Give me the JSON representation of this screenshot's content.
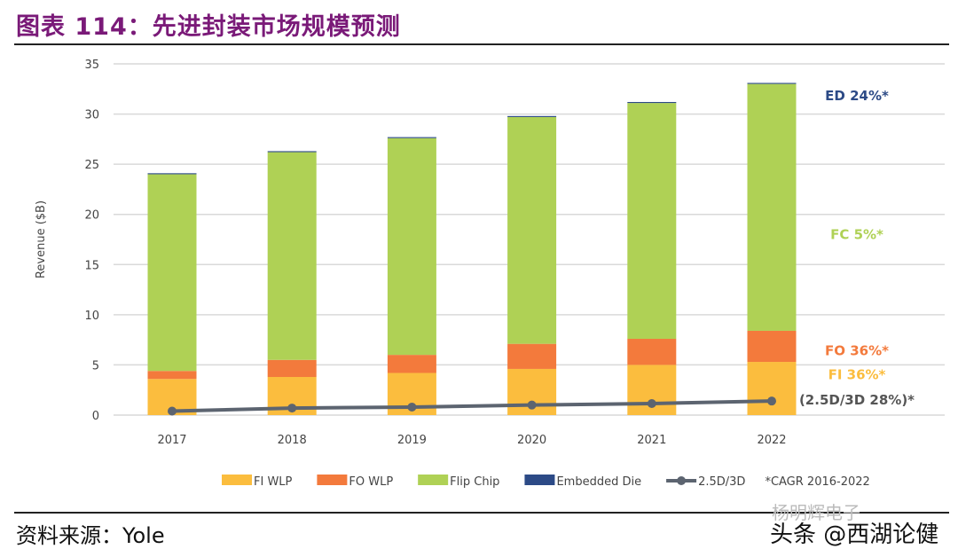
{
  "header": {
    "title": "图表 114：先进封装市场规模预测"
  },
  "footer": {
    "source": "资料来源：Yole",
    "watermark_top": "杨明辉电子",
    "watermark_bottom": "头条 @西湖论健"
  },
  "chart_data": {
    "type": "bar",
    "stacked": true,
    "title": "图表 114：先进封装市场规模预测",
    "xlabel": "",
    "ylabel": "Revenue ($B)",
    "ylim": [
      0,
      35
    ],
    "yticks": [
      0,
      5,
      10,
      15,
      20,
      25,
      30,
      35
    ],
    "grid": true,
    "categories": [
      "2017",
      "2018",
      "2019",
      "2020",
      "2021",
      "2022"
    ],
    "series": [
      {
        "name": "FI WLP",
        "type": "bar",
        "color": "#fbbd3e",
        "values": [
          3.6,
          3.8,
          4.2,
          4.6,
          5.0,
          5.3
        ]
      },
      {
        "name": "FO WLP",
        "type": "bar",
        "color": "#f37a3c",
        "values": [
          0.8,
          1.7,
          1.8,
          2.5,
          2.6,
          3.1
        ]
      },
      {
        "name": "Flip Chip",
        "type": "bar",
        "color": "#afd155",
        "values": [
          19.6,
          20.7,
          21.6,
          22.6,
          23.5,
          24.6
        ]
      },
      {
        "name": "Embedded Die",
        "type": "bar",
        "color": "#2c4a86",
        "values": [
          0.1,
          0.1,
          0.1,
          0.1,
          0.1,
          0.1
        ]
      },
      {
        "name": "2.5D/3D",
        "type": "line",
        "color": "#5c6470",
        "values": [
          0.4,
          0.7,
          0.8,
          1.0,
          1.15,
          1.4
        ]
      }
    ],
    "legend_note": "*CAGR 2016-2022",
    "legend_placement": "bottom",
    "annotations": [
      {
        "text": "ED 24%*",
        "color": "#2c4a86",
        "at": 31.8
      },
      {
        "text": "FC 5%*",
        "color": "#afd155",
        "at": 18
      },
      {
        "text": "FO 36%*",
        "color": "#f37a3c",
        "at": 6.4
      },
      {
        "text": "FI 36%*",
        "color": "#fbbd3e",
        "at": 4.0
      },
      {
        "text": "(2.5D/3D 28%)*",
        "color": "#555555",
        "at": 1.5
      }
    ]
  }
}
